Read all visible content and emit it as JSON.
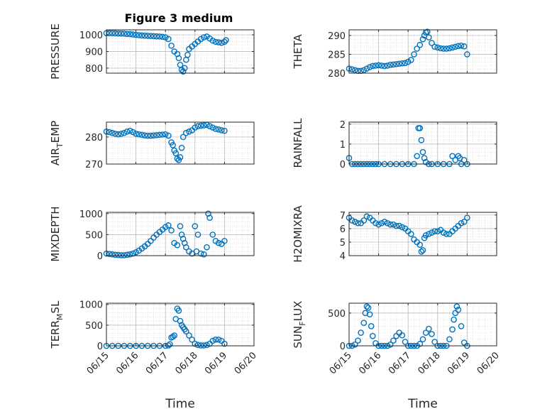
{
  "figure_title": "Figure 3 medium",
  "x_axis": {
    "label": "Time",
    "ticks": [
      "06/15",
      "06/16",
      "06/17",
      "06/18",
      "06/19",
      "06/20"
    ],
    "range": [
      0,
      5
    ]
  },
  "colors": {
    "marker": "#0072BD",
    "axes": "#262626",
    "grid": "#b0b0b0"
  },
  "chart_data": [
    {
      "type": "scatter",
      "name_label": "PRESSURE",
      "label_parts": [
        "PRESSURE"
      ],
      "ylim": [
        770,
        1030
      ],
      "yticks": [
        800,
        900,
        1000
      ],
      "ytick_labels": [
        "800",
        "900",
        "1000"
      ],
      "x": [
        0.0,
        0.1,
        0.2,
        0.3,
        0.4,
        0.5,
        0.6,
        0.7,
        0.8,
        0.9,
        1.0,
        1.1,
        1.2,
        1.3,
        1.4,
        1.5,
        1.6,
        1.7,
        1.8,
        1.9,
        2.0,
        2.1,
        2.2,
        2.3,
        2.4,
        2.45,
        2.5,
        2.55,
        2.6,
        2.65,
        2.7,
        2.75,
        2.8,
        2.9,
        3.0,
        3.1,
        3.2,
        3.3,
        3.4,
        3.5,
        3.6,
        3.7,
        3.8,
        3.9,
        4.0,
        4.05
      ],
      "y": [
        1010,
        1010,
        1010,
        1009,
        1008,
        1008,
        1007,
        1005,
        1004,
        1002,
        1000,
        998,
        996,
        995,
        994,
        993,
        992,
        991,
        990,
        988,
        985,
        975,
        935,
        900,
        885,
        860,
        820,
        790,
        780,
        800,
        850,
        880,
        915,
        930,
        945,
        960,
        975,
        985,
        990,
        978,
        965,
        958,
        955,
        952,
        958,
        968
      ]
    },
    {
      "type": "scatter",
      "name_label": "THETA",
      "label_parts": [
        "THETA"
      ],
      "ylim": [
        280,
        291.5
      ],
      "yticks": [
        280,
        285,
        290
      ],
      "ytick_labels": [
        "280",
        "285",
        "290"
      ],
      "x": [
        0.0,
        0.1,
        0.2,
        0.3,
        0.4,
        0.5,
        0.6,
        0.7,
        0.8,
        0.9,
        1.0,
        1.1,
        1.2,
        1.3,
        1.4,
        1.5,
        1.6,
        1.7,
        1.8,
        1.9,
        2.0,
        2.1,
        2.2,
        2.3,
        2.4,
        2.5,
        2.55,
        2.6,
        2.65,
        2.7,
        2.8,
        2.9,
        3.0,
        3.1,
        3.2,
        3.3,
        3.4,
        3.5,
        3.6,
        3.7,
        3.8,
        3.9,
        4.0
      ],
      "y": [
        281.2,
        281.0,
        280.8,
        280.6,
        280.6,
        280.8,
        281.2,
        281.6,
        281.9,
        282.0,
        282.1,
        282.0,
        281.9,
        282.0,
        282.2,
        282.3,
        282.4,
        282.5,
        282.6,
        282.7,
        283.0,
        283.5,
        285.0,
        286.5,
        287.5,
        289.0,
        290.0,
        290.8,
        291.0,
        289.5,
        288.0,
        287.0,
        286.8,
        286.6,
        286.5,
        286.5,
        286.6,
        286.8,
        287.0,
        287.2,
        287.3,
        287.1,
        285.0
      ]
    },
    {
      "type": "scatter",
      "name_label": "AIR_TEMP",
      "label_parts": [
        "AIR",
        "T",
        "EMP"
      ],
      "ylim": [
        270,
        285.5
      ],
      "yticks": [
        270,
        280
      ],
      "ytick_labels": [
        "270",
        "280"
      ],
      "x": [
        0.0,
        0.1,
        0.2,
        0.3,
        0.4,
        0.5,
        0.6,
        0.7,
        0.8,
        0.9,
        1.0,
        1.1,
        1.2,
        1.3,
        1.4,
        1.5,
        1.6,
        1.7,
        1.8,
        1.9,
        2.0,
        2.1,
        2.2,
        2.25,
        2.3,
        2.35,
        2.4,
        2.45,
        2.5,
        2.55,
        2.6,
        2.7,
        2.8,
        2.9,
        3.0,
        3.1,
        3.2,
        3.3,
        3.4,
        3.5,
        3.6,
        3.7,
        3.8,
        3.9,
        4.0
      ],
      "y": [
        282.0,
        281.8,
        281.5,
        281.2,
        281.0,
        281.2,
        281.5,
        282.0,
        282.3,
        281.8,
        281.2,
        281.0,
        280.8,
        280.6,
        280.5,
        280.5,
        280.6,
        280.7,
        280.8,
        280.9,
        281.0,
        280.5,
        278.0,
        277.0,
        275.0,
        274.0,
        272.0,
        271.5,
        272.5,
        276.0,
        280.0,
        281.5,
        282.0,
        282.5,
        283.5,
        284.0,
        284.2,
        284.3,
        284.5,
        284.0,
        283.5,
        283.0,
        282.8,
        282.5,
        282.3
      ]
    },
    {
      "type": "scatter",
      "name_label": "RAINFALL",
      "label_parts": [
        "RAINFALL"
      ],
      "ylim": [
        0,
        2.1
      ],
      "yticks": [
        0,
        1,
        2
      ],
      "ytick_labels": [
        "0",
        "1",
        "2"
      ],
      "x": [
        0.0,
        0.1,
        0.2,
        0.3,
        0.4,
        0.5,
        0.6,
        0.7,
        0.8,
        0.9,
        1.0,
        1.2,
        1.4,
        1.6,
        1.8,
        2.0,
        2.2,
        2.3,
        2.35,
        2.4,
        2.45,
        2.5,
        2.55,
        2.6,
        2.7,
        2.8,
        3.0,
        3.2,
        3.4,
        3.5,
        3.6,
        3.7,
        3.75,
        3.8,
        3.9,
        4.0
      ],
      "y": [
        0.3,
        0,
        0,
        0,
        0,
        0,
        0,
        0,
        0,
        0,
        0,
        0,
        0,
        0,
        0,
        0,
        0,
        0.4,
        1.8,
        1.8,
        1.2,
        0.6,
        0.3,
        0.1,
        0,
        0,
        0,
        0,
        0,
        0.4,
        0.2,
        0.4,
        0.3,
        0,
        0.2,
        0
      ]
    },
    {
      "type": "scatter",
      "name_label": "MIXDEPTH",
      "label_parts": [
        "MIXDEPTH"
      ],
      "ylim": [
        0,
        1030
      ],
      "yticks": [
        0,
        500,
        1000
      ],
      "ytick_labels": [
        "0",
        "500",
        "1000"
      ],
      "x": [
        0.0,
        0.1,
        0.2,
        0.3,
        0.4,
        0.5,
        0.6,
        0.7,
        0.8,
        0.9,
        1.0,
        1.1,
        1.2,
        1.3,
        1.4,
        1.5,
        1.6,
        1.7,
        1.8,
        1.9,
        2.0,
        2.1,
        2.2,
        2.3,
        2.4,
        2.5,
        2.55,
        2.6,
        2.65,
        2.7,
        2.8,
        2.9,
        3.0,
        3.05,
        3.1,
        3.2,
        3.3,
        3.4,
        3.45,
        3.5,
        3.6,
        3.7,
        3.8,
        3.9,
        4.0
      ],
      "y": [
        50,
        40,
        30,
        20,
        15,
        10,
        10,
        20,
        30,
        50,
        80,
        120,
        170,
        220,
        280,
        350,
        430,
        500,
        560,
        620,
        680,
        720,
        600,
        300,
        250,
        700,
        500,
        400,
        300,
        200,
        100,
        50,
        700,
        100,
        500,
        50,
        30,
        200,
        1000,
        900,
        500,
        350,
        300,
        280,
        350
      ]
    },
    {
      "type": "scatter",
      "name_label": "H2OMIXRA",
      "label_parts": [
        "H2OMIXRA"
      ],
      "ylim": [
        4,
        7.2
      ],
      "yticks": [
        4,
        5,
        6,
        7
      ],
      "ytick_labels": [
        "4",
        "5",
        "6",
        "7"
      ],
      "x": [
        0.0,
        0.1,
        0.2,
        0.3,
        0.4,
        0.5,
        0.6,
        0.7,
        0.8,
        0.9,
        1.0,
        1.1,
        1.2,
        1.3,
        1.4,
        1.5,
        1.6,
        1.7,
        1.8,
        1.9,
        2.0,
        2.1,
        2.2,
        2.3,
        2.4,
        2.45,
        2.5,
        2.55,
        2.6,
        2.7,
        2.8,
        2.9,
        3.0,
        3.1,
        3.2,
        3.3,
        3.4,
        3.5,
        3.6,
        3.7,
        3.8,
        3.9,
        4.0
      ],
      "y": [
        6.8,
        6.6,
        6.5,
        6.4,
        6.4,
        6.6,
        6.9,
        6.8,
        6.6,
        6.4,
        6.3,
        6.4,
        6.5,
        6.4,
        6.3,
        6.3,
        6.2,
        6.2,
        6.1,
        6.0,
        5.8,
        5.6,
        5.2,
        5.0,
        4.8,
        4.3,
        4.4,
        5.3,
        5.5,
        5.6,
        5.7,
        5.8,
        5.8,
        5.9,
        5.7,
        5.6,
        5.6,
        5.8,
        6.0,
        6.2,
        6.4,
        6.5,
        6.8
      ]
    },
    {
      "type": "scatter",
      "name_label": "TERR_MSL",
      "label_parts": [
        "TERR",
        "M",
        "SL"
      ],
      "ylim": [
        0,
        1030
      ],
      "yticks": [
        0,
        500,
        1000
      ],
      "ytick_labels": [
        "0",
        "500",
        "1000"
      ],
      "x": [
        0.0,
        0.2,
        0.4,
        0.6,
        0.8,
        1.0,
        1.2,
        1.4,
        1.6,
        1.8,
        2.0,
        2.1,
        2.15,
        2.2,
        2.25,
        2.3,
        2.35,
        2.4,
        2.45,
        2.5,
        2.55,
        2.6,
        2.65,
        2.7,
        2.8,
        2.9,
        3.0,
        3.1,
        3.2,
        3.3,
        3.4,
        3.5,
        3.6,
        3.7,
        3.8,
        3.9,
        4.0
      ],
      "y": [
        0,
        0,
        0,
        0,
        0,
        0,
        0,
        0,
        0,
        0,
        0,
        10,
        40,
        200,
        220,
        250,
        650,
        900,
        850,
        600,
        500,
        450,
        400,
        350,
        250,
        150,
        50,
        20,
        10,
        10,
        20,
        50,
        120,
        150,
        150,
        120,
        50
      ]
    },
    {
      "type": "scatter",
      "name_label": "SUN_FLUX",
      "label_parts": [
        "SUN",
        "F",
        "LUX"
      ],
      "ylim": [
        0,
        650
      ],
      "yticks": [
        0,
        500
      ],
      "ytick_labels": [
        "0",
        "500"
      ],
      "x": [
        0.0,
        0.1,
        0.2,
        0.3,
        0.4,
        0.5,
        0.55,
        0.6,
        0.65,
        0.7,
        0.75,
        0.8,
        0.9,
        1.0,
        1.1,
        1.2,
        1.3,
        1.4,
        1.5,
        1.6,
        1.7,
        1.8,
        1.9,
        2.0,
        2.1,
        2.2,
        2.3,
        2.4,
        2.5,
        2.6,
        2.7,
        2.8,
        2.9,
        3.0,
        3.1,
        3.2,
        3.3,
        3.4,
        3.5,
        3.55,
        3.6,
        3.65,
        3.7,
        3.8,
        3.9,
        4.0
      ],
      "y": [
        0,
        0,
        20,
        80,
        200,
        350,
        500,
        600,
        580,
        480,
        300,
        150,
        40,
        0,
        0,
        0,
        0,
        20,
        80,
        150,
        200,
        160,
        60,
        0,
        0,
        0,
        0,
        30,
        100,
        200,
        260,
        180,
        60,
        0,
        0,
        0,
        0,
        100,
        250,
        400,
        500,
        600,
        550,
        300,
        50,
        0
      ]
    }
  ]
}
